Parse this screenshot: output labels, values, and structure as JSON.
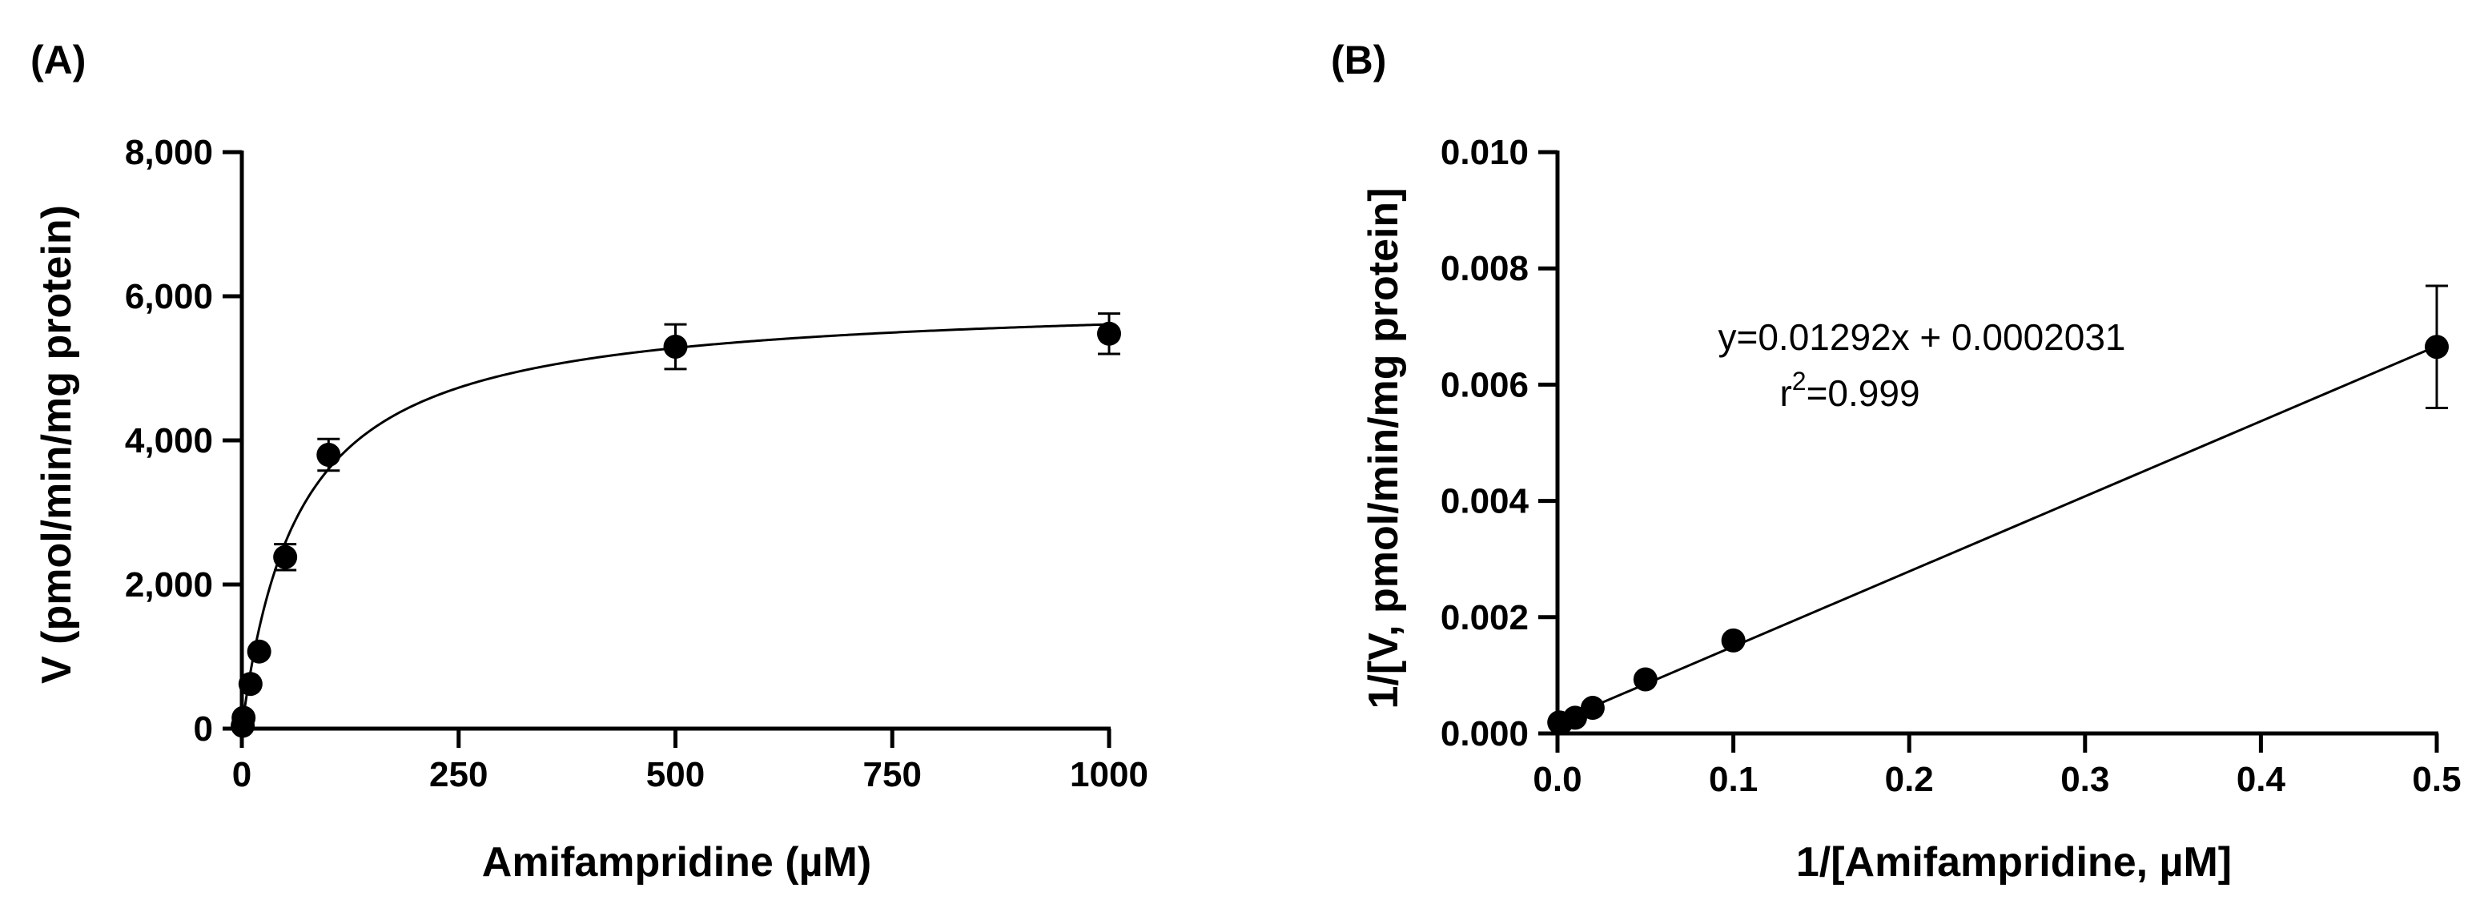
{
  "chart_data": [
    {
      "panel_label": "(A)",
      "type": "scatter",
      "xlabel": "Amifampridine (µM)",
      "ylabel": "V (pmol/min/mg protein)",
      "xlim": [
        0,
        1000
      ],
      "ylim": [
        0,
        8000
      ],
      "x_ticks": [
        0,
        250,
        500,
        750,
        1000
      ],
      "x_tick_labels": [
        "0",
        "250",
        "500",
        "750",
        "1000"
      ],
      "y_ticks": [
        0,
        2000,
        4000,
        6000,
        8000
      ],
      "y_tick_labels": [
        "0",
        "2,000",
        "4,000",
        "6,000",
        "8,000"
      ],
      "points": [
        {
          "x": 1,
          "y": 40,
          "err": 0
        },
        {
          "x": 2,
          "y": 150,
          "err": 0
        },
        {
          "x": 10,
          "y": 620,
          "err": 0
        },
        {
          "x": 20,
          "y": 1070,
          "err": 0
        },
        {
          "x": 50,
          "y": 2380,
          "err": 180
        },
        {
          "x": 100,
          "y": 3800,
          "err": 220
        },
        {
          "x": 500,
          "y": 5300,
          "err": 310
        },
        {
          "x": 1000,
          "y": 5480,
          "err": 280
        }
      ],
      "fit": {
        "model": "Michaelis-Menten",
        "vmax": 5980,
        "km": 66
      }
    },
    {
      "panel_label": "(B)",
      "type": "scatter",
      "xlabel": "1/[Amifampridine, µM]",
      "ylabel": "1/[V, pmol/min/mg protein]",
      "xlim": [
        0,
        0.5
      ],
      "ylim": [
        0,
        0.01
      ],
      "x_ticks": [
        0,
        0.1,
        0.2,
        0.3,
        0.4,
        0.5
      ],
      "x_tick_labels": [
        "0.0",
        "0.1",
        "0.2",
        "0.3",
        "0.4",
        "0.5"
      ],
      "y_ticks": [
        0,
        0.002,
        0.004,
        0.006,
        0.008,
        0.01
      ],
      "y_tick_labels": [
        "0.000",
        "0.002",
        "0.004",
        "0.006",
        "0.008",
        "0.010"
      ],
      "points": [
        {
          "x": 0.001,
          "y": 0.00019,
          "err": 0
        },
        {
          "x": 0.002,
          "y": 0.00018,
          "err": 0
        },
        {
          "x": 0.01,
          "y": 0.00027,
          "err": 0
        },
        {
          "x": 0.02,
          "y": 0.00044,
          "err": 0
        },
        {
          "x": 0.05,
          "y": 0.00093,
          "err": 0
        },
        {
          "x": 0.1,
          "y": 0.0016,
          "err": 0
        },
        {
          "x": 0.5,
          "y": 0.00665,
          "err": 0.00105
        }
      ],
      "fit": {
        "model": "linear",
        "slope": 0.01292,
        "intercept": 0.0002031
      },
      "equation_text": "y=0.01292x + 0.0002031",
      "r2_prefix": "r",
      "r2_superscript": "2",
      "r2_value": "=0.999"
    }
  ]
}
